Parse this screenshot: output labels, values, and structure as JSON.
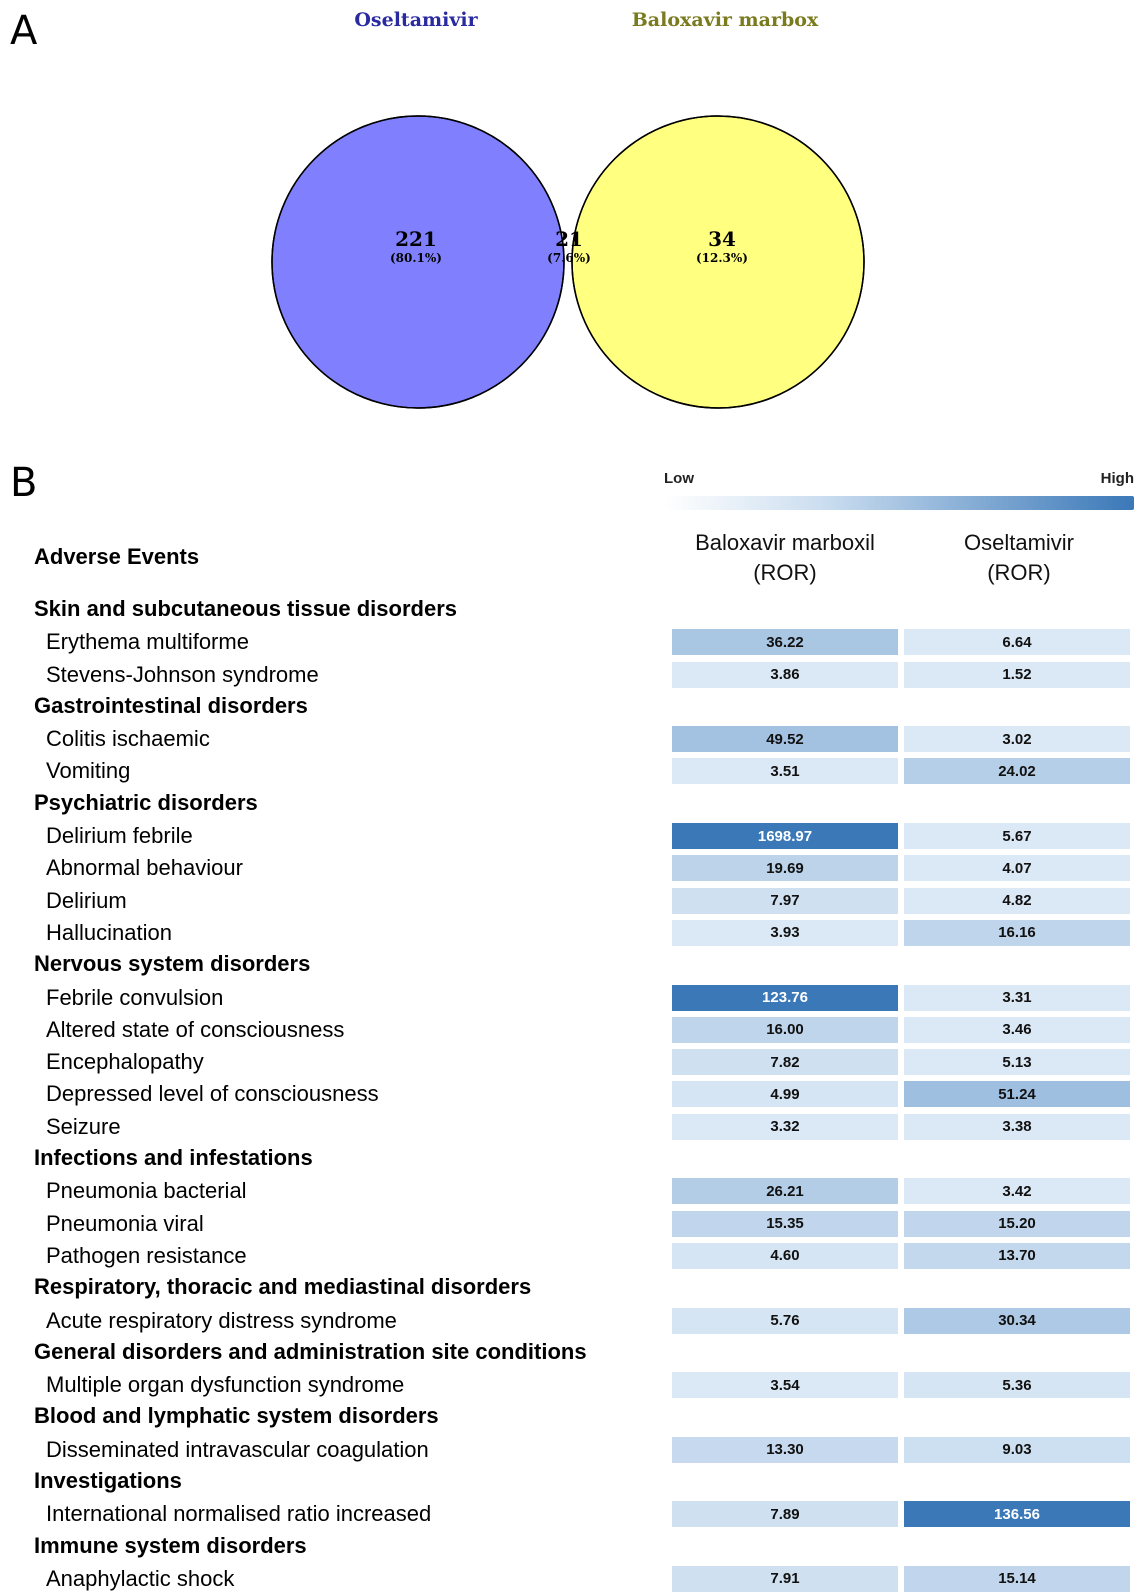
{
  "panel_a": {
    "letter": "A"
  },
  "panel_b": {
    "letter": "B"
  },
  "chart_data": [
    {
      "type": "venn",
      "sets": [
        {
          "name": "Oseltamivir",
          "color": "#8080ff",
          "label_color": "#2a2aa0",
          "count": "221",
          "percent": "(80.1%)"
        },
        {
          "name": "Baloxavir marbox",
          "color": "#ffff80",
          "label_color": "#7a7a1e",
          "count": "34",
          "percent": "(12.3%)"
        }
      ],
      "intersection": {
        "color": "#bfbf80",
        "count": "21",
        "percent": "(7.6%)"
      }
    },
    {
      "type": "heatmap",
      "legend": {
        "low": "Low",
        "high": "High",
        "low_color": "#ffffff",
        "high_color": "#3a78b8"
      },
      "row_header": "Adverse Events",
      "columns": [
        {
          "name": "Baloxavir marboxil",
          "unit": "(ROR)"
        },
        {
          "name": "Oseltamivir",
          "unit": "(ROR)"
        }
      ],
      "rows": [
        {
          "kind": "category",
          "label": "Skin and subcutaneous tissue disorders"
        },
        {
          "kind": "event",
          "label": "Erythema multiforme",
          "values": [
            "36.22",
            "6.64"
          ],
          "colors": [
            "#a9c6e3",
            "#dbe8f5"
          ]
        },
        {
          "kind": "event",
          "label": "Stevens-Johnson syndrome",
          "values": [
            "3.86",
            "1.52"
          ],
          "colors": [
            "#dbe8f5",
            "#dbe8f5"
          ]
        },
        {
          "kind": "category",
          "label": "Gastrointestinal disorders"
        },
        {
          "kind": "event",
          "label": "Colitis ischaemic",
          "values": [
            "49.52",
            "3.02"
          ],
          "colors": [
            "#a3c2e1",
            "#dbe8f5"
          ]
        },
        {
          "kind": "event",
          "label": "Vomiting",
          "values": [
            "3.51",
            "24.02"
          ],
          "colors": [
            "#dbe8f5",
            "#b6cfe8"
          ]
        },
        {
          "kind": "category",
          "label": "Psychiatric disorders"
        },
        {
          "kind": "event",
          "label": "Delirium febrile",
          "values": [
            "1698.97",
            "5.67"
          ],
          "colors": [
            "#3a78b8",
            "#dbe8f5"
          ],
          "dark": [
            true,
            false
          ]
        },
        {
          "kind": "event",
          "label": "Abnormal behaviour",
          "values": [
            "19.69",
            "4.07"
          ],
          "colors": [
            "#bcd3ea",
            "#dbe8f5"
          ]
        },
        {
          "kind": "event",
          "label": "Delirium",
          "values": [
            "7.97",
            "4.82"
          ],
          "colors": [
            "#cfe0f1",
            "#dbe8f5"
          ]
        },
        {
          "kind": "event",
          "label": "Hallucination",
          "values": [
            "3.93",
            "16.16"
          ],
          "colors": [
            "#dbe8f5",
            "#bfd5eb"
          ]
        },
        {
          "kind": "category",
          "label": "Nervous system disorders"
        },
        {
          "kind": "event",
          "label": "Febrile convulsion",
          "values": [
            "123.76",
            "3.31"
          ],
          "colors": [
            "#3a78b8",
            "#dbe8f5"
          ],
          "dark": [
            true,
            false
          ]
        },
        {
          "kind": "event",
          "label": "Altered state of consciousness",
          "values": [
            "16.00",
            "3.46"
          ],
          "colors": [
            "#bfd5eb",
            "#dbe8f5"
          ]
        },
        {
          "kind": "event",
          "label": "Encephalopathy",
          "values": [
            "7.82",
            "5.13"
          ],
          "colors": [
            "#cfe0f1",
            "#dbe8f5"
          ]
        },
        {
          "kind": "event",
          "label": "Depressed level of consciousness",
          "values": [
            "4.99",
            "51.24"
          ],
          "colors": [
            "#d6e5f3",
            "#9fbfe0"
          ]
        },
        {
          "kind": "event",
          "label": "Seizure",
          "values": [
            "3.32",
            "3.38"
          ],
          "colors": [
            "#dbe8f5",
            "#dbe8f5"
          ]
        },
        {
          "kind": "category",
          "label": "Infections and infestations"
        },
        {
          "kind": "event",
          "label": "Pneumonia bacterial",
          "values": [
            "26.21",
            "3.42"
          ],
          "colors": [
            "#b3cde7",
            "#dbe8f5"
          ]
        },
        {
          "kind": "event",
          "label": "Pneumonia viral",
          "values": [
            "15.35",
            "15.20"
          ],
          "colors": [
            "#c1d6ec",
            "#c1d6ec"
          ]
        },
        {
          "kind": "event",
          "label": "Pathogen resistance",
          "values": [
            "4.60",
            "13.70"
          ],
          "colors": [
            "#d6e5f3",
            "#c4d8ed"
          ]
        },
        {
          "kind": "category",
          "label": "Respiratory, thoracic and mediastinal disorders"
        },
        {
          "kind": "event",
          "label": "Acute respiratory distress syndrome",
          "values": [
            "5.76",
            "30.34"
          ],
          "colors": [
            "#d6e5f3",
            "#adc9e5"
          ]
        },
        {
          "kind": "category",
          "label": "General disorders and administration site conditions"
        },
        {
          "kind": "event",
          "label": "Multiple organ dysfunction syndrome",
          "values": [
            "3.54",
            "5.36"
          ],
          "colors": [
            "#dbe8f5",
            "#d6e5f3"
          ]
        },
        {
          "kind": "category",
          "label": "Blood and lymphatic system disorders"
        },
        {
          "kind": "event",
          "label": "Disseminated intravascular coagulation",
          "values": [
            "13.30",
            "9.03"
          ],
          "colors": [
            "#c6d9ee",
            "#cde0f1"
          ]
        },
        {
          "kind": "category",
          "label": "Investigations"
        },
        {
          "kind": "event",
          "label": "International normalised ratio increased",
          "values": [
            "7.89",
            "136.56"
          ],
          "colors": [
            "#cfe0f1",
            "#3a78b8"
          ],
          "dark": [
            false,
            true
          ]
        },
        {
          "kind": "category",
          "label": "Immune system disorders"
        },
        {
          "kind": "event",
          "label": "Anaphylactic shock",
          "values": [
            "7.91",
            "15.14"
          ],
          "colors": [
            "#cfe0f1",
            "#c1d6ec"
          ]
        }
      ]
    }
  ]
}
